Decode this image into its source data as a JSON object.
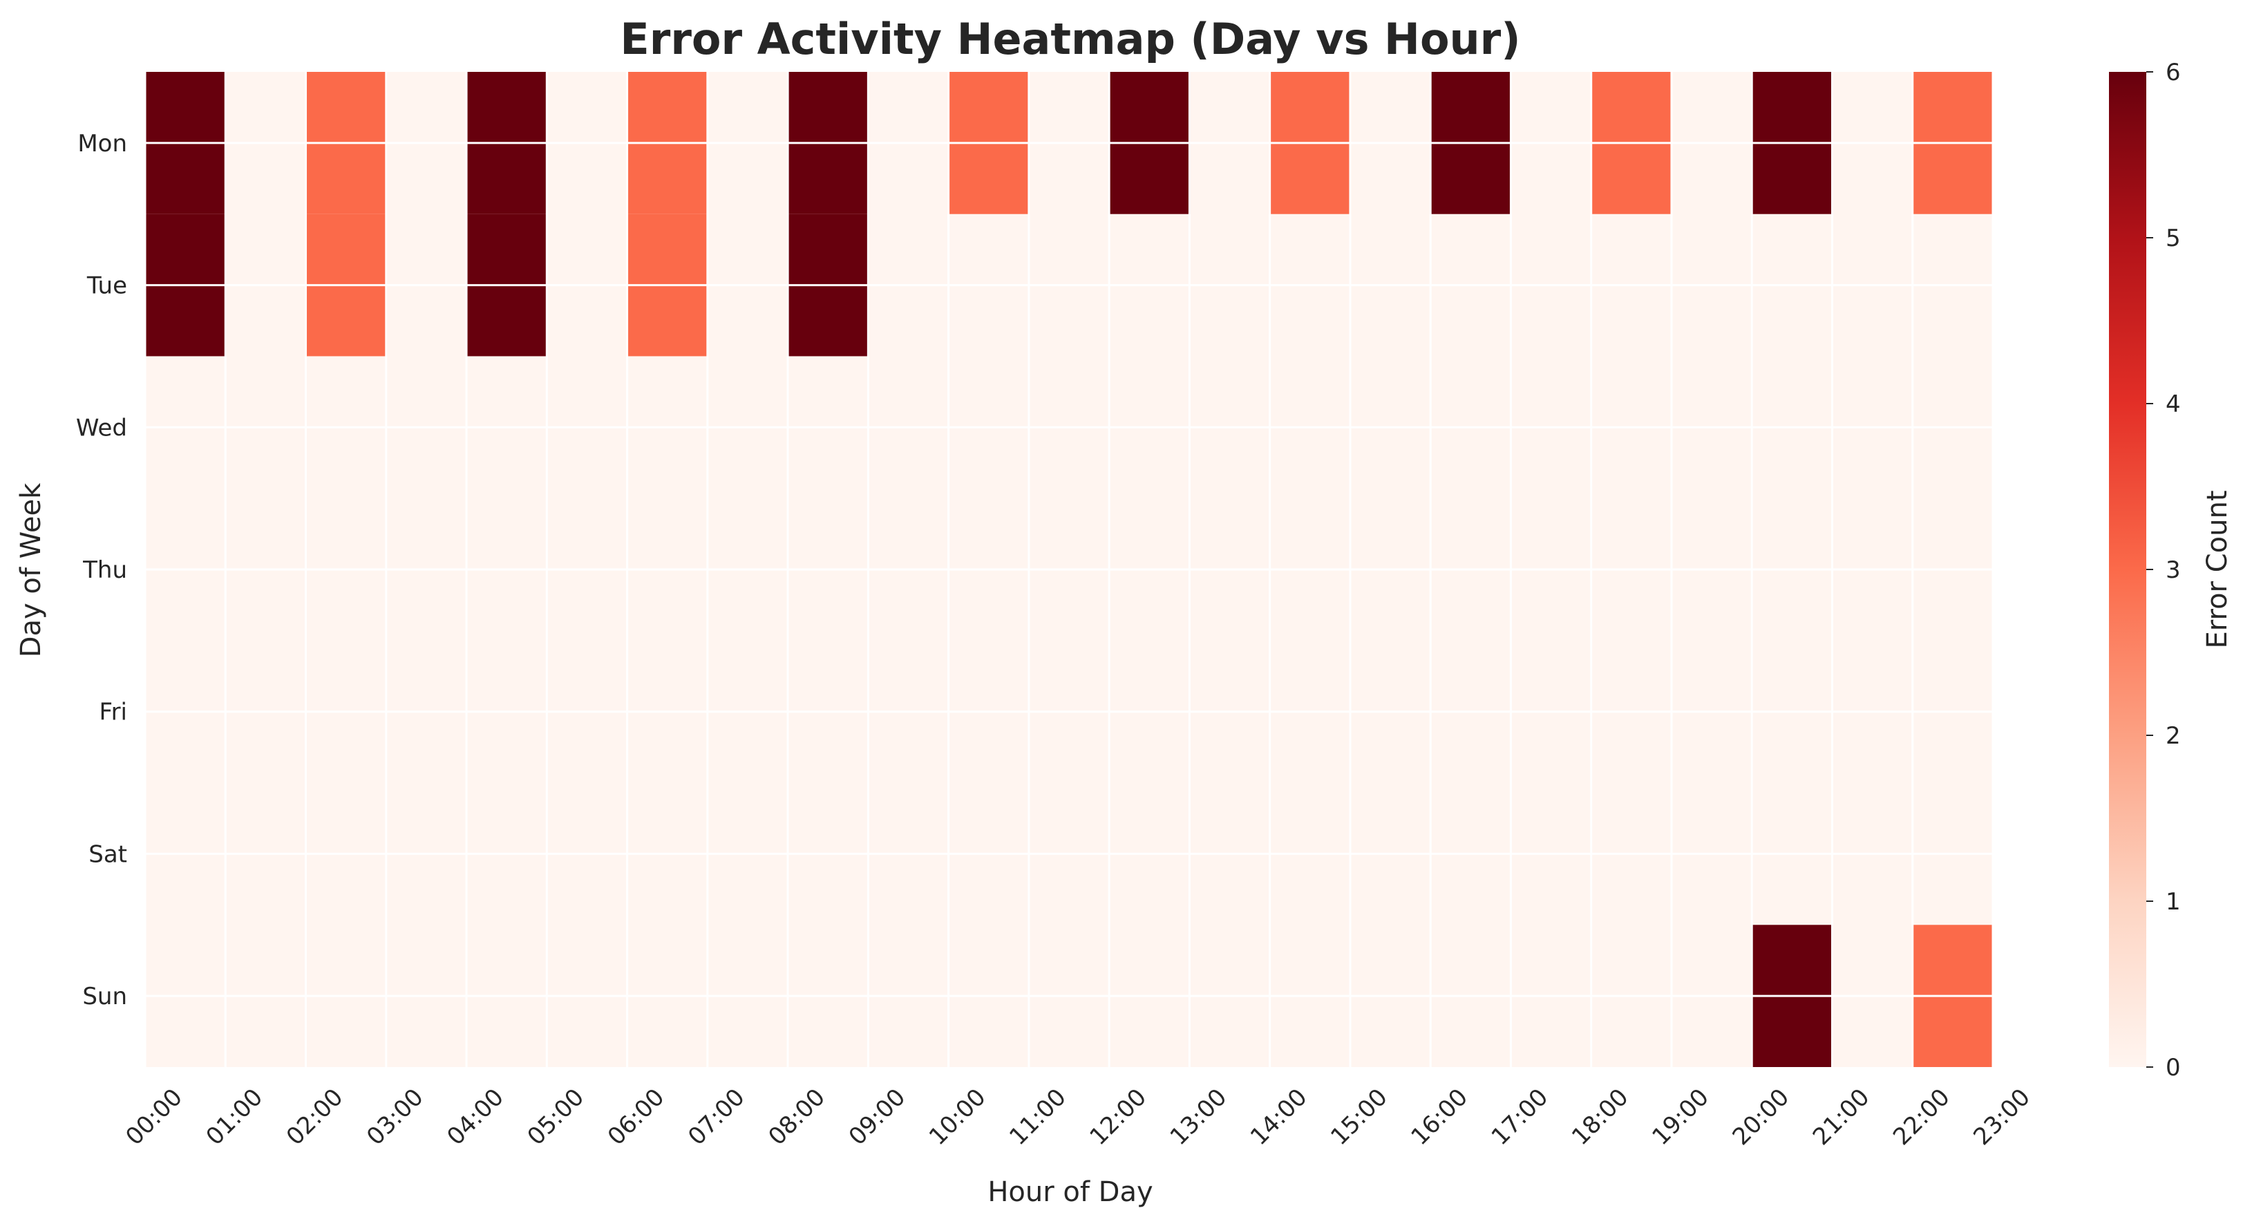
{
  "chart_data": {
    "type": "heatmap",
    "title": "Error Activity Heatmap (Day vs Hour)",
    "xlabel": "Hour of Day",
    "ylabel": "Day of Week",
    "x_categories": [
      "00:00",
      "01:00",
      "02:00",
      "03:00",
      "04:00",
      "05:00",
      "06:00",
      "07:00",
      "08:00",
      "09:00",
      "10:00",
      "11:00",
      "12:00",
      "13:00",
      "14:00",
      "15:00",
      "16:00",
      "17:00",
      "18:00",
      "19:00",
      "20:00",
      "21:00",
      "22:00",
      "23:00"
    ],
    "y_categories": [
      "Mon",
      "Tue",
      "Wed",
      "Thu",
      "Fri",
      "Sat",
      "Sun"
    ],
    "cells": [
      {
        "day": "Mon",
        "start": "00:00",
        "end": "01:00",
        "value": 6
      },
      {
        "day": "Tue",
        "start": "00:00",
        "end": "01:00",
        "value": 6
      },
      {
        "day": "Mon",
        "start": "02:00",
        "end": "03:00",
        "value": 3
      },
      {
        "day": "Tue",
        "start": "02:00",
        "end": "03:00",
        "value": 3
      },
      {
        "day": "Mon",
        "start": "04:00",
        "end": "05:00",
        "value": 6
      },
      {
        "day": "Tue",
        "start": "04:00",
        "end": "05:00",
        "value": 6
      },
      {
        "day": "Mon",
        "start": "06:00",
        "end": "07:00",
        "value": 3
      },
      {
        "day": "Tue",
        "start": "06:00",
        "end": "07:00",
        "value": 3
      },
      {
        "day": "Mon",
        "start": "08:00",
        "end": "09:00",
        "value": 6
      },
      {
        "day": "Tue",
        "start": "08:00",
        "end": "09:00",
        "value": 6
      },
      {
        "day": "Mon",
        "start": "10:00",
        "end": "11:00",
        "value": 3
      },
      {
        "day": "Mon",
        "start": "12:00",
        "end": "13:00",
        "value": 6
      },
      {
        "day": "Mon",
        "start": "14:00",
        "end": "15:00",
        "value": 3
      },
      {
        "day": "Mon",
        "start": "16:00",
        "end": "17:00",
        "value": 6
      },
      {
        "day": "Mon",
        "start": "18:00",
        "end": "19:00",
        "value": 3
      },
      {
        "day": "Mon",
        "start": "20:00",
        "end": "21:00",
        "value": 6
      },
      {
        "day": "Mon",
        "start": "22:00",
        "end": "23:00",
        "value": 3
      },
      {
        "day": "Sun",
        "start": "20:00",
        "end": "21:00",
        "value": 6
      },
      {
        "day": "Sun",
        "start": "22:00",
        "end": "23:00",
        "value": 3
      }
    ],
    "default_value": 0,
    "colorbar": {
      "label": "Error Count",
      "range": [
        0,
        6
      ],
      "ticks": [
        "0",
        "1",
        "2",
        "3",
        "4",
        "5",
        "6"
      ],
      "colormap": "Reds",
      "colors": [
        "#fff5f0",
        "#fdd4c2",
        "#fca082",
        "#fb6a4a",
        "#e32f27",
        "#b11218",
        "#67000d"
      ]
    },
    "grid": true,
    "grid_color": "#ffffff"
  }
}
